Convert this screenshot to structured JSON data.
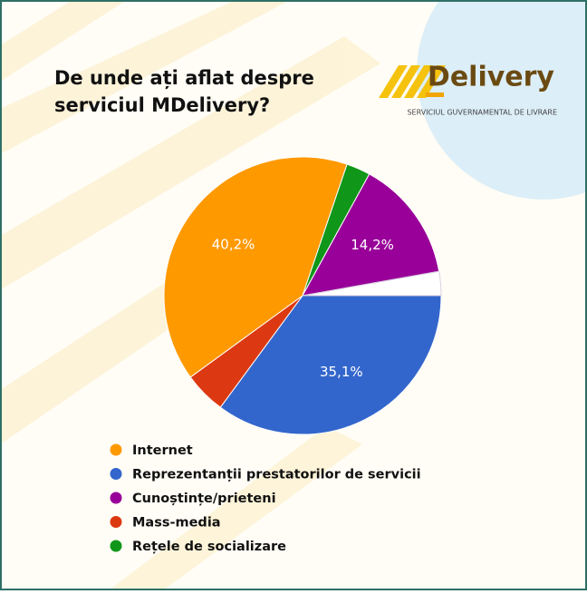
{
  "chart_data": {
    "type": "pie",
    "title": "De unde ați aflat despre",
    "subtitle": "serviciul MDelivery?",
    "logo": {
      "name": "Delivery",
      "tagline": "SERVICIUL GUVERNAMENTAL DE LIVRARE"
    },
    "start_angle": 90,
    "direction": "clockwise",
    "categories": [
      "Reprezentanții prestatorilor de servicii",
      "Mass-media",
      "Internet",
      "Rețele de socializare",
      "Cunoștințe/prieteni",
      null
    ],
    "values": [
      35.1,
      4.9,
      40.2,
      2.8,
      14.2,
      2.8
    ],
    "value_labels": [
      "35,1%",
      null,
      "40,2%",
      null,
      "14,2%",
      null
    ],
    "colors": [
      "#3366cc",
      "#dc3912",
      "#ff9900",
      "#109618",
      "#990099",
      "#ffffff"
    ],
    "legend_order": [
      2,
      0,
      4,
      1,
      3
    ],
    "legend": "bottom-left"
  }
}
